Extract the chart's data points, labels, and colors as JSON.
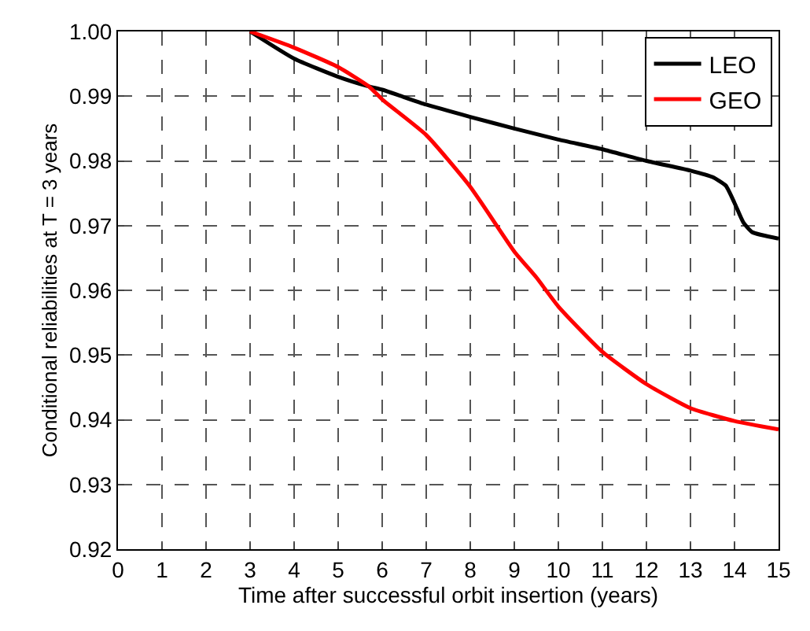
{
  "chart_data": {
    "type": "line",
    "xlabel": "Time after successful orbit insertion (years)",
    "ylabel": "Conditional reliabilities at T = 3 years",
    "xlim": [
      0,
      15
    ],
    "xticks": [
      0,
      1,
      2,
      3,
      4,
      5,
      6,
      7,
      8,
      9,
      10,
      11,
      12,
      13,
      14,
      15
    ],
    "ylim": [
      0.92,
      1.0
    ],
    "yticks": [
      0.92,
      0.93,
      0.94,
      0.95,
      0.96,
      0.97,
      0.98,
      0.99,
      {
        "value": 1.0,
        "label": "1.00"
      }
    ],
    "grid": true,
    "legend": "top right",
    "line_style": "solid",
    "marker": "none",
    "series": [
      {
        "name": "LEO",
        "color": "#000000",
        "x": [
          3,
          4,
          5,
          5.7,
          6,
          7,
          8,
          9,
          10,
          11,
          12,
          13,
          13.5,
          13.8,
          14,
          14.2,
          14.4,
          15
        ],
        "values": [
          1.0,
          0.9958,
          0.993,
          0.9915,
          0.991,
          0.9887,
          0.9868,
          0.985,
          0.9833,
          0.9818,
          0.98,
          0.9785,
          0.9775,
          0.9762,
          0.9735,
          0.9705,
          0.969,
          0.968
        ]
      },
      {
        "name": "GEO",
        "color": "#ff0000",
        "x": [
          3,
          4,
          5,
          5.7,
          6,
          7,
          8,
          9,
          9.5,
          10,
          11,
          12,
          13,
          14,
          15
        ],
        "values": [
          1.0,
          0.9975,
          0.9945,
          0.9915,
          0.9895,
          0.984,
          0.976,
          0.966,
          0.962,
          0.9575,
          0.9505,
          0.9455,
          0.9418,
          0.9398,
          0.9385
        ]
      }
    ]
  }
}
